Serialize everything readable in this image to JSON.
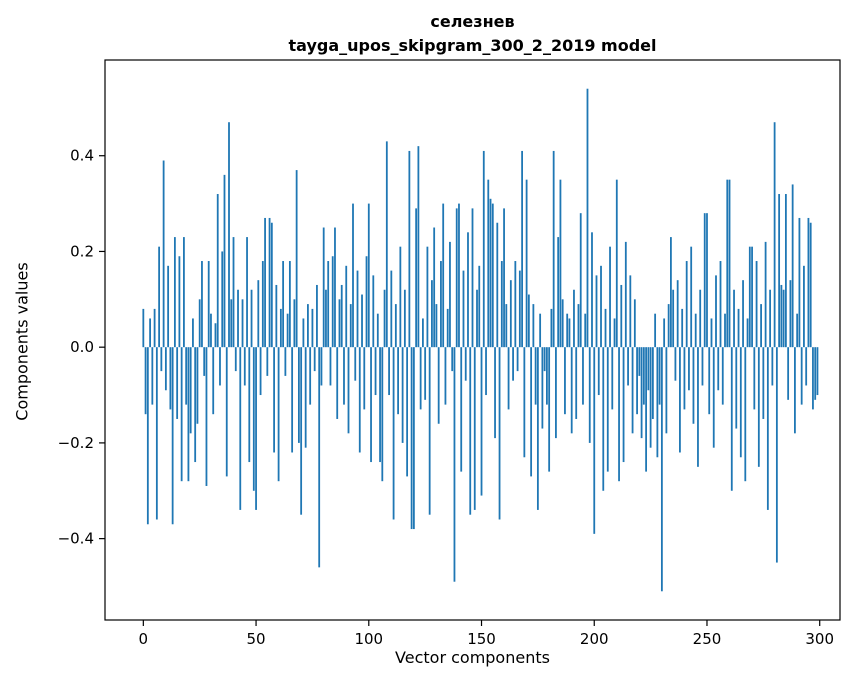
{
  "figure": {
    "title_line1": "селезнев",
    "title_line2": "tayga_upos_skipgram_300_2_2019 model",
    "xlabel": "Vector components",
    "ylabel": "Components values"
  },
  "chart_data": {
    "type": "bar",
    "title": "селезнев — tayga_upos_skipgram_300_2_2019 model",
    "xlabel": "Vector components",
    "ylabel": "Components values",
    "bar_color": "#1f77b4",
    "axis_color": "#000000",
    "x_ticks": [
      0,
      50,
      100,
      150,
      200,
      250,
      300
    ],
    "y_ticks": [
      -0.4,
      -0.2,
      0.0,
      0.2,
      0.4
    ],
    "xlim": [
      -17,
      309
    ],
    "ylim": [
      -0.57,
      0.6
    ],
    "legend": "none",
    "grid": false,
    "values": [
      0.08,
      -0.14,
      -0.37,
      0.06,
      -0.12,
      0.08,
      -0.36,
      0.21,
      -0.05,
      0.39,
      -0.09,
      0.17,
      -0.13,
      -0.37,
      0.23,
      -0.15,
      0.19,
      -0.28,
      0.23,
      -0.12,
      -0.28,
      -0.18,
      0.06,
      -0.24,
      -0.16,
      0.1,
      0.18,
      -0.06,
      -0.29,
      0.18,
      0.07,
      -0.14,
      0.05,
      0.32,
      -0.08,
      0.2,
      0.36,
      -0.27,
      0.47,
      0.1,
      0.23,
      -0.05,
      0.12,
      -0.34,
      0.1,
      -0.08,
      0.23,
      -0.24,
      0.12,
      -0.3,
      -0.34,
      0.14,
      -0.1,
      0.18,
      0.27,
      -0.06,
      0.27,
      0.26,
      -0.22,
      0.13,
      -0.28,
      0.08,
      0.18,
      -0.06,
      0.07,
      0.18,
      -0.22,
      0.1,
      0.37,
      -0.2,
      -0.35,
      0.06,
      -0.21,
      0.09,
      -0.12,
      0.08,
      -0.05,
      0.13,
      -0.46,
      -0.08,
      0.25,
      0.12,
      0.18,
      -0.08,
      0.19,
      0.25,
      -0.15,
      0.1,
      0.13,
      -0.12,
      0.17,
      -0.18,
      0.09,
      0.3,
      -0.07,
      0.16,
      -0.22,
      0.11,
      -0.13,
      0.19,
      0.3,
      -0.24,
      0.15,
      -0.1,
      0.07,
      -0.24,
      -0.28,
      0.12,
      0.43,
      -0.1,
      0.16,
      -0.36,
      0.09,
      -0.14,
      0.21,
      -0.2,
      0.12,
      -0.27,
      0.41,
      -0.38,
      -0.38,
      0.29,
      0.42,
      -0.13,
      0.06,
      -0.11,
      0.21,
      -0.35,
      0.14,
      0.25,
      0.09,
      -0.16,
      0.18,
      0.3,
      -0.12,
      0.08,
      0.22,
      -0.05,
      -0.49,
      0.29,
      0.3,
      -0.26,
      0.16,
      -0.07,
      0.24,
      -0.35,
      0.29,
      -0.34,
      0.12,
      0.17,
      -0.31,
      0.41,
      -0.1,
      0.35,
      0.31,
      0.3,
      -0.19,
      0.26,
      -0.36,
      0.18,
      0.29,
      0.09,
      -0.13,
      0.14,
      -0.07,
      0.18,
      -0.05,
      0.16,
      0.41,
      -0.23,
      0.35,
      0.11,
      -0.27,
      0.09,
      -0.12,
      -0.34,
      0.07,
      -0.17,
      -0.05,
      -0.12,
      -0.26,
      0.08,
      0.41,
      -0.19,
      0.23,
      0.35,
      0.1,
      -0.14,
      0.07,
      0.06,
      -0.18,
      0.12,
      -0.15,
      0.09,
      0.28,
      -0.12,
      0.07,
      0.54,
      -0.2,
      0.24,
      -0.39,
      0.15,
      -0.1,
      0.17,
      -0.3,
      0.08,
      -0.26,
      0.21,
      -0.13,
      0.06,
      0.35,
      -0.28,
      0.13,
      -0.24,
      0.22,
      -0.08,
      0.15,
      -0.18,
      0.1,
      -0.14,
      -0.06,
      -0.19,
      -0.12,
      -0.26,
      -0.09,
      -0.21,
      -0.15,
      0.07,
      -0.23,
      -0.12,
      -0.51,
      0.06,
      -0.18,
      0.09,
      0.23,
      0.12,
      -0.07,
      0.14,
      -0.22,
      0.08,
      -0.13,
      0.18,
      -0.09,
      0.21,
      -0.16,
      0.07,
      -0.25,
      0.12,
      -0.08,
      0.28,
      0.28,
      -0.14,
      0.06,
      -0.21,
      0.15,
      -0.09,
      0.18,
      -0.12,
      0.07,
      0.35,
      0.35,
      -0.3,
      0.12,
      -0.17,
      0.08,
      -0.23,
      0.14,
      -0.28,
      0.06,
      0.21,
      0.21,
      -0.13,
      0.18,
      -0.25,
      0.09,
      -0.15,
      0.22,
      -0.34,
      0.12,
      -0.08,
      0.47,
      -0.45,
      0.32,
      0.13,
      0.12,
      0.32,
      -0.11,
      0.14,
      0.34,
      -0.18,
      0.07,
      0.27,
      -0.12,
      0.17,
      -0.08,
      0.27,
      0.26,
      -0.13,
      -0.11,
      -0.1
    ]
  }
}
